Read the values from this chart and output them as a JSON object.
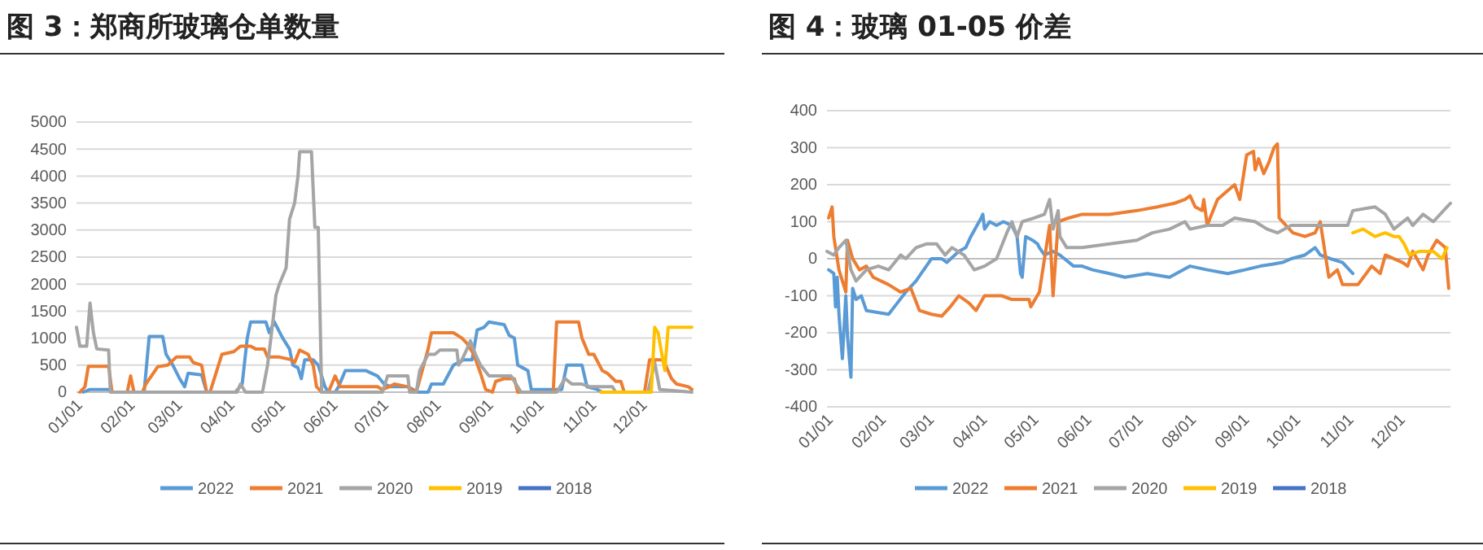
{
  "chart_data": [
    {
      "type": "line",
      "title": "图 3：郑商所玻璃仓单数量",
      "xlim": [
        "--01-01",
        "--12-31"
      ],
      "ylim": [
        0,
        5000
      ],
      "yticks": [
        0,
        500,
        1000,
        1500,
        2000,
        2500,
        3000,
        3500,
        4000,
        4500,
        5000
      ],
      "grid": "y",
      "legend": "bottom",
      "line_style": "solid",
      "marker": "none",
      "xticks": [
        {
          "value": "--01-01",
          "label": "01/01"
        },
        {
          "value": "--02-01",
          "label": "02/01"
        },
        {
          "value": "--03-01",
          "label": "03/01"
        },
        {
          "value": "--04-01",
          "label": "04/01"
        },
        {
          "value": "--05-01",
          "label": "05/01"
        },
        {
          "value": "--06-01",
          "label": "06/01"
        },
        {
          "value": "--07-01",
          "label": "07/01"
        },
        {
          "value": "--08-01",
          "label": "08/01"
        },
        {
          "value": "--09-01",
          "label": "09/01"
        },
        {
          "value": "--10-01",
          "label": "10/01"
        },
        {
          "value": "--11-01",
          "label": "11/01"
        },
        {
          "value": "--12-01",
          "label": "12/01"
        }
      ],
      "series": [
        {
          "name": "2022",
          "color": "#5b9bd5",
          "x": [
            "--01-05",
            "--01-09",
            "--01-20",
            "--01-22",
            "--02-10",
            "--02-13",
            "--02-21",
            "--02-23",
            "--02-27",
            "--03-03",
            "--03-06",
            "--03-08",
            "--03-16",
            "--03-19",
            "--04-05",
            "--04-09",
            "--04-12",
            "--04-14",
            "--04-23",
            "--04-25",
            "--04-28",
            "--05-03",
            "--05-07",
            "--05-09",
            "--05-12",
            "--05-14",
            "--05-16",
            "--05-21",
            "--05-24",
            "--05-28",
            "--05-30",
            "--06-03",
            "--06-05",
            "--06-09",
            "--06-21",
            "--06-28",
            "--07-02",
            "--07-06",
            "--07-16",
            "--07-22",
            "--07-28",
            "--07-30",
            "--08-06",
            "--08-12",
            "--08-18",
            "--08-23",
            "--08-26",
            "--08-30",
            "--09-02",
            "--09-11",
            "--09-14",
            "--09-17",
            "--09-19",
            "--09-22",
            "--09-25",
            "--09-27",
            "--10-15",
            "--10-18",
            "--10-27",
            "--10-30",
            "--11-05",
            "--11-08"
          ],
          "values": [
            0,
            50,
            50,
            0,
            0,
            1030,
            1030,
            700,
            500,
            250,
            100,
            350,
            320,
            0,
            0,
            150,
            1000,
            1300,
            1300,
            1100,
            1300,
            1000,
            800,
            500,
            450,
            250,
            600,
            600,
            500,
            100,
            0,
            0,
            100,
            400,
            400,
            300,
            150,
            100,
            100,
            0,
            0,
            150,
            150,
            500,
            600,
            600,
            1150,
            1200,
            1300,
            1250,
            1050,
            1000,
            500,
            450,
            400,
            50,
            50,
            500,
            500,
            100,
            50,
            0
          ]
        },
        {
          "name": "2021",
          "color": "#ed7d31",
          "x": [
            "--01-03",
            "--01-06",
            "--01-08",
            "--01-20",
            "--01-22",
            "--01-31",
            "--02-02",
            "--02-04",
            "--02-09",
            "--02-11",
            "--02-18",
            "--02-24",
            "--03-01",
            "--03-09",
            "--03-11",
            "--03-16",
            "--03-19",
            "--03-21",
            "--03-23",
            "--03-25",
            "--03-28",
            "--04-04",
            "--04-08",
            "--04-14",
            "--04-17",
            "--04-22",
            "--04-24",
            "--05-01",
            "--05-08",
            "--05-10",
            "--05-13",
            "--05-18",
            "--05-21",
            "--05-23",
            "--05-26",
            "--05-30",
            "--06-03",
            "--06-06",
            "--06-28",
            "--07-01",
            "--07-05",
            "--07-08",
            "--07-16",
            "--07-21",
            "--07-28",
            "--07-30",
            "--08-12",
            "--08-17",
            "--08-20",
            "--08-24",
            "--08-28",
            "--08-31",
            "--09-04",
            "--09-06",
            "--09-11",
            "--09-17",
            "--09-19",
            "--10-10",
            "--10-12",
            "--10-25",
            "--10-27",
            "--10-31",
            "--11-03",
            "--11-08",
            "--11-11",
            "--11-16",
            "--11-19",
            "--11-21",
            "--12-03",
            "--12-06",
            "--12-14",
            "--12-19",
            "--12-22",
            "--12-29",
            "--12-31"
          ],
          "values": [
            0,
            100,
            480,
            480,
            0,
            0,
            300,
            0,
            0,
            150,
            470,
            500,
            650,
            650,
            550,
            500,
            0,
            0,
            200,
            400,
            700,
            750,
            850,
            850,
            800,
            800,
            650,
            650,
            600,
            550,
            780,
            700,
            500,
            100,
            0,
            0,
            300,
            100,
            100,
            50,
            100,
            150,
            100,
            0,
            800,
            1100,
            1100,
            1000,
            900,
            700,
            350,
            50,
            0,
            200,
            250,
            250,
            0,
            0,
            1300,
            1300,
            1000,
            700,
            700,
            400,
            350,
            200,
            200,
            0,
            0,
            600,
            600,
            250,
            150,
            100,
            50
          ]
        },
        {
          "name": "2020",
          "color": "#a5a5a5",
          "x": [
            "--01-01",
            "--01-03",
            "--01-07",
            "--01-09",
            "--01-11",
            "--01-13",
            "--01-20",
            "--01-21",
            "--04-06",
            "--04-08",
            "--04-11",
            "--04-21",
            "--04-24",
            "--04-26",
            "--04-29",
            "--05-01",
            "--05-05",
            "--05-07",
            "--05-10",
            "--05-12",
            "--05-13",
            "--05-20",
            "--05-22",
            "--05-24",
            "--05-26",
            "--07-01",
            "--07-04",
            "--07-16",
            "--07-17",
            "--07-21",
            "--07-23",
            "--07-28",
            "--08-01",
            "--08-04",
            "--08-14",
            "--08-15",
            "--08-17",
            "--08-20",
            "--08-22",
            "--08-25",
            "--08-28",
            "--09-02",
            "--09-15",
            "--09-21",
            "--10-12",
            "--10-17",
            "--10-21",
            "--10-27",
            "--11-01",
            "--11-14",
            "--11-16",
            "--12-05",
            "--12-09",
            "--12-12",
            "--12-31"
          ],
          "values": [
            1200,
            850,
            850,
            1650,
            1100,
            800,
            780,
            0,
            0,
            150,
            0,
            0,
            500,
            1000,
            1800,
            2000,
            2300,
            3200,
            3500,
            4000,
            4450,
            4450,
            3050,
            3050,
            0,
            0,
            300,
            300,
            0,
            0,
            400,
            700,
            700,
            780,
            780,
            500,
            600,
            800,
            950,
            700,
            500,
            300,
            300,
            0,
            0,
            250,
            150,
            150,
            100,
            100,
            0,
            0,
            550,
            50,
            0
          ]
        },
        {
          "name": "2019",
          "color": "#ffc000",
          "x": [
            "--11-07",
            "--12-07",
            "--12-09",
            "--12-11",
            "--12-15",
            "--12-17",
            "--12-31"
          ],
          "values": [
            0,
            0,
            1200,
            1100,
            400,
            1200,
            1200
          ]
        },
        {
          "name": "2018",
          "color": "#4472c4"
        }
      ]
    },
    {
      "type": "line",
      "title": "图 4：玻璃 01-05 价差",
      "xlim": [
        "--01-01",
        "--12-31"
      ],
      "ylim": [
        -400,
        400
      ],
      "yticks": [
        -400,
        -300,
        -200,
        -100,
        0,
        100,
        200,
        300,
        400
      ],
      "grid": "y",
      "legend": "bottom",
      "line_style": "solid",
      "marker": "none",
      "xticks": [
        {
          "value": "--01-01",
          "label": "01/01"
        },
        {
          "value": "--02-01",
          "label": "02/01"
        },
        {
          "value": "--03-01",
          "label": "03/01"
        },
        {
          "value": "--04-01",
          "label": "04/01"
        },
        {
          "value": "--05-01",
          "label": "05/01"
        },
        {
          "value": "--06-01",
          "label": "06/01"
        },
        {
          "value": "--07-01",
          "label": "07/01"
        },
        {
          "value": "--08-01",
          "label": "08/01"
        },
        {
          "value": "--09-01",
          "label": "09/01"
        },
        {
          "value": "--10-01",
          "label": "10/01"
        },
        {
          "value": "--11-01",
          "label": "11/01"
        },
        {
          "value": "--12-01",
          "label": "12/01"
        }
      ],
      "series": [
        {
          "name": "2022",
          "color": "#5b9bd5",
          "x": [
            "--01-02",
            "--01-05",
            "--01-06",
            "--01-07",
            "--01-08",
            "--01-10",
            "--01-12",
            "--01-13",
            "--01-15",
            "--01-16",
            "--01-18",
            "--01-21",
            "--01-24",
            "--02-06",
            "--02-11",
            "--02-16",
            "--02-22",
            "--02-25",
            "--02-28",
            "--03-03",
            "--03-09",
            "--03-12",
            "--03-19",
            "--03-23",
            "--03-26",
            "--04-01",
            "--04-02",
            "--04-03",
            "--04-06",
            "--04-10",
            "--04-14",
            "--04-19",
            "--04-22",
            "--04-24",
            "--04-25",
            "--04-27",
            "--05-01",
            "--05-04",
            "--05-05",
            "--05-08",
            "--05-13",
            "--05-17",
            "--05-25",
            "--05-30",
            "--06-05",
            "--06-15",
            "--06-24",
            "--07-07",
            "--07-20",
            "--08-01",
            "--08-11",
            "--08-23",
            "--09-02",
            "--09-11",
            "--09-18",
            "--09-24",
            "--09-29",
            "--10-07",
            "--10-13",
            "--10-16",
            "--10-22",
            "--10-29",
            "--11-04"
          ],
          "values": [
            -30,
            -40,
            -130,
            -50,
            -150,
            -270,
            -100,
            -210,
            -320,
            -80,
            -110,
            -100,
            -140,
            -150,
            -120,
            -90,
            -60,
            -40,
            -20,
            0,
            0,
            -10,
            20,
            30,
            60,
            110,
            120,
            80,
            100,
            90,
            100,
            90,
            60,
            -40,
            -50,
            60,
            50,
            40,
            30,
            10,
            20,
            10,
            -20,
            -20,
            -30,
            -40,
            -50,
            -40,
            -50,
            -20,
            -30,
            -40,
            -30,
            -20,
            -15,
            -10,
            0,
            10,
            30,
            10,
            0,
            -10,
            -40
          ]
        },
        {
          "name": "2021",
          "color": "#ed7d31",
          "x": [
            "--01-02",
            "--01-04",
            "--01-05",
            "--01-08",
            "--01-12",
            "--01-13",
            "--01-16",
            "--01-20",
            "--01-24",
            "--01-28",
            "--02-06",
            "--02-13",
            "--02-19",
            "--02-24",
            "--03-03",
            "--03-09",
            "--03-14",
            "--03-19",
            "--03-25",
            "--03-29",
            "--04-03",
            "--04-13",
            "--04-19",
            "--04-29",
            "--04-30",
            "--05-05",
            "--05-08",
            "--05-11",
            "--05-13",
            "--05-16",
            "--05-22",
            "--05-30",
            "--06-15",
            "--07-01",
            "--07-13",
            "--07-23",
            "--07-29",
            "--08-01",
            "--08-04",
            "--08-08",
            "--08-09",
            "--08-11",
            "--08-17",
            "--08-22",
            "--08-27",
            "--08-30",
            "--09-03",
            "--09-07",
            "--09-08",
            "--09-10",
            "--09-13",
            "--09-16",
            "--09-19",
            "--09-21",
            "--09-22",
            "--09-26",
            "--09-30",
            "--10-07",
            "--10-13",
            "--10-16",
            "--10-21",
            "--10-26",
            "--10-29",
            "--11-07",
            "--11-15",
            "--11-20",
            "--11-23",
            "--12-03",
            "--12-06",
            "--12-09",
            "--12-15",
            "--12-18",
            "--12-23",
            "--12-28",
            "--12-30"
          ],
          "values": [
            110,
            140,
            60,
            -30,
            -90,
            50,
            0,
            -30,
            -20,
            -50,
            -70,
            -90,
            -80,
            -140,
            -150,
            -155,
            -130,
            -100,
            -120,
            -140,
            -100,
            -100,
            -110,
            -110,
            -130,
            -90,
            0,
            90,
            -100,
            100,
            110,
            120,
            120,
            130,
            140,
            150,
            160,
            170,
            140,
            130,
            160,
            90,
            160,
            180,
            200,
            160,
            280,
            290,
            240,
            270,
            230,
            260,
            300,
            310,
            110,
            90,
            70,
            60,
            70,
            100,
            -50,
            -30,
            -70,
            -70,
            -20,
            -40,
            10,
            -10,
            -20,
            20,
            -30,
            10,
            50,
            30,
            -80
          ]
        },
        {
          "name": "2020",
          "color": "#a5a5a5",
          "x": [
            "--01-01",
            "--01-05",
            "--01-08",
            "--01-12",
            "--01-15",
            "--01-18",
            "--01-24",
            "--01-31",
            "--02-06",
            "--02-13",
            "--02-16",
            "--02-22",
            "--02-28",
            "--03-06",
            "--03-11",
            "--03-15",
            "--03-22",
            "--03-28",
            "--04-03",
            "--04-10",
            "--04-16",
            "--04-19",
            "--04-22",
            "--04-25",
            "--05-02",
            "--05-08",
            "--05-11",
            "--05-13",
            "--05-16",
            "--05-17",
            "--05-21",
            "--05-30",
            "--06-15",
            "--07-01",
            "--07-10",
            "--07-20",
            "--07-29",
            "--08-01",
            "--08-11",
            "--08-20",
            "--08-27",
            "--09-08",
            "--09-15",
            "--09-21",
            "--09-29",
            "--10-10",
            "--10-22",
            "--11-01",
            "--11-04",
            "--11-17",
            "--11-23",
            "--11-28",
            "--12-06",
            "--12-09",
            "--12-15",
            "--12-21",
            "--12-31"
          ],
          "values": [
            20,
            10,
            30,
            50,
            -30,
            -60,
            -30,
            -20,
            -30,
            10,
            0,
            30,
            40,
            40,
            10,
            30,
            10,
            -30,
            -20,
            0,
            70,
            100,
            60,
            100,
            110,
            120,
            160,
            80,
            130,
            60,
            30,
            30,
            40,
            50,
            70,
            80,
            100,
            80,
            90,
            90,
            110,
            100,
            80,
            70,
            90,
            90,
            90,
            90,
            130,
            140,
            120,
            80,
            110,
            90,
            120,
            100,
            150
          ]
        },
        {
          "name": "2019",
          "color": "#ffc000",
          "x": [
            "--11-04",
            "--11-10",
            "--11-17",
            "--11-23",
            "--11-28",
            "--12-01",
            "--12-04",
            "--12-07",
            "--12-13",
            "--12-21",
            "--12-26",
            "--12-29"
          ],
          "values": [
            70,
            80,
            60,
            70,
            60,
            60,
            40,
            10,
            20,
            20,
            0,
            30
          ]
        },
        {
          "name": "2018",
          "color": "#4472c4"
        }
      ]
    }
  ]
}
